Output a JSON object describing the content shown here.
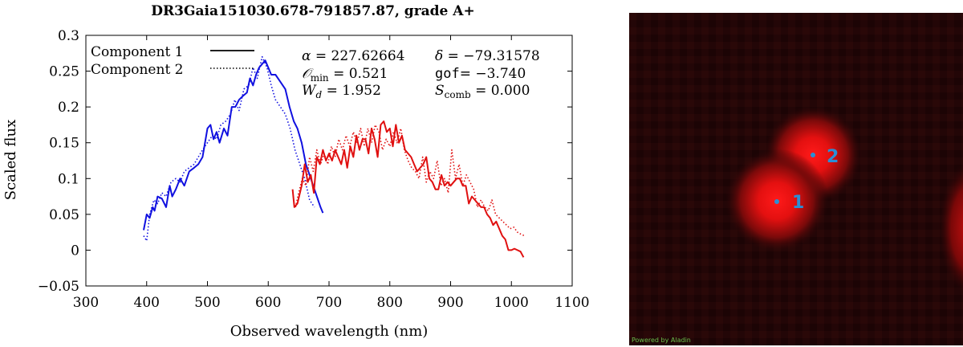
{
  "chart_data": {
    "type": "line",
    "title": "DR3Gaia151030.678-791857.87, grade A+",
    "xlabel": "Observed wavelength (nm)",
    "ylabel": "Scaled flux",
    "xlim": [
      300,
      1100
    ],
    "ylim": [
      -0.05,
      0.3
    ],
    "xticks": [
      "300",
      "400",
      "500",
      "600",
      "700",
      "800",
      "900",
      "1000",
      "1100"
    ],
    "yticks": [
      "−0.05",
      "0",
      "0.05",
      "0.1",
      "0.15",
      "0.2",
      "0.25",
      "0.3"
    ],
    "legend": {
      "position": "top-left",
      "entries": [
        {
          "label": "Component 1",
          "style": "solid"
        },
        {
          "label": "Component 2",
          "style": "dotted"
        }
      ]
    },
    "annotations": {
      "alpha": {
        "symbol": "α",
        "value": "= 227.62664"
      },
      "delta": {
        "symbol": "δ",
        "value": "= −79.31578"
      },
      "omin": {
        "symbol": "𝒪",
        "sub": "min",
        "value": " = 0.521"
      },
      "gof": {
        "symbol": "gof",
        "value": "= −3.740"
      },
      "wd": {
        "symbol": "W",
        "sub": "d",
        "value": " = 1.952"
      },
      "scomb": {
        "symbol": "S",
        "sub": "comb",
        "value": " = 0.000"
      }
    },
    "colors": {
      "blue": "#1010e0",
      "red": "#e01010"
    },
    "series": [
      {
        "name": "Component 1",
        "color": "blue",
        "style": "solid",
        "x": [
          395,
          400,
          405,
          410,
          413,
          418,
          425,
          432,
          438,
          442,
          448,
          455,
          462,
          470,
          478,
          485,
          492,
          500,
          505,
          510,
          515,
          520,
          527,
          533,
          540,
          546,
          552,
          558,
          565,
          570,
          575,
          580,
          585,
          590,
          595,
          600,
          605,
          612,
          620,
          628,
          635,
          642,
          648,
          655,
          662,
          670,
          678,
          686,
          690
        ],
        "y": [
          0.028,
          0.05,
          0.045,
          0.06,
          0.055,
          0.075,
          0.072,
          0.06,
          0.09,
          0.075,
          0.085,
          0.1,
          0.09,
          0.11,
          0.115,
          0.12,
          0.13,
          0.17,
          0.175,
          0.155,
          0.165,
          0.15,
          0.17,
          0.16,
          0.2,
          0.2,
          0.21,
          0.215,
          0.22,
          0.24,
          0.23,
          0.245,
          0.255,
          0.26,
          0.265,
          0.255,
          0.245,
          0.245,
          0.235,
          0.225,
          0.2,
          0.18,
          0.17,
          0.15,
          0.12,
          0.1,
          0.08,
          0.06,
          0.052
        ]
      },
      {
        "name": "Component 2",
        "color": "blue",
        "style": "dotted",
        "x": [
          395,
          400,
          405,
          412,
          418,
          425,
          432,
          440,
          448,
          455,
          462,
          470,
          478,
          485,
          492,
          500,
          508,
          515,
          522,
          530,
          538,
          545,
          552,
          560,
          568,
          575,
          582,
          590,
          598,
          605,
          612,
          620,
          628,
          636,
          644,
          652,
          660,
          668,
          676
        ],
        "y": [
          0.02,
          0.013,
          0.05,
          0.07,
          0.065,
          0.08,
          0.075,
          0.095,
          0.1,
          0.095,
          0.11,
          0.115,
          0.12,
          0.13,
          0.14,
          0.15,
          0.16,
          0.155,
          0.175,
          0.18,
          0.19,
          0.21,
          0.195,
          0.225,
          0.23,
          0.255,
          0.24,
          0.27,
          0.255,
          0.23,
          0.21,
          0.2,
          0.19,
          0.17,
          0.14,
          0.12,
          0.1,
          0.07,
          0.06
        ]
      },
      {
        "name": "Component 1",
        "color": "red",
        "style": "solid",
        "x": [
          640,
          643,
          648,
          655,
          660,
          665,
          670,
          675,
          680,
          685,
          690,
          695,
          700,
          705,
          710,
          715,
          720,
          725,
          730,
          735,
          740,
          745,
          750,
          755,
          760,
          765,
          770,
          775,
          780,
          785,
          790,
          795,
          800,
          805,
          810,
          815,
          820,
          825,
          830,
          835,
          840,
          845,
          850,
          855,
          860,
          865,
          870,
          875,
          880,
          885,
          890,
          895,
          900,
          905,
          910,
          915,
          920,
          925,
          930,
          935,
          940,
          945,
          950,
          955,
          960,
          965,
          970,
          975,
          980,
          985,
          990,
          995,
          1000,
          1005,
          1010,
          1015,
          1020
        ],
        "y": [
          0.085,
          0.06,
          0.065,
          0.09,
          0.12,
          0.095,
          0.105,
          0.08,
          0.13,
          0.12,
          0.14,
          0.125,
          0.135,
          0.125,
          0.14,
          0.13,
          0.12,
          0.14,
          0.115,
          0.145,
          0.13,
          0.16,
          0.14,
          0.155,
          0.155,
          0.135,
          0.17,
          0.155,
          0.13,
          0.175,
          0.18,
          0.165,
          0.17,
          0.145,
          0.175,
          0.15,
          0.16,
          0.14,
          0.135,
          0.13,
          0.12,
          0.11,
          0.115,
          0.12,
          0.13,
          0.1,
          0.095,
          0.085,
          0.085,
          0.105,
          0.09,
          0.095,
          0.09,
          0.095,
          0.1,
          0.1,
          0.09,
          0.09,
          0.065,
          0.075,
          0.07,
          0.065,
          0.06,
          0.06,
          0.05,
          0.045,
          0.035,
          0.04,
          0.03,
          0.02,
          0.015,
          0.0,
          0.0,
          0.002,
          0.0,
          -0.002,
          -0.01
        ]
      },
      {
        "name": "Component 2",
        "color": "red",
        "style": "dotted",
        "x": [
          645,
          650,
          656,
          662,
          668,
          674,
          680,
          686,
          692,
          698,
          704,
          710,
          716,
          722,
          728,
          734,
          740,
          746,
          752,
          758,
          764,
          770,
          776,
          782,
          788,
          794,
          800,
          806,
          812,
          818,
          824,
          830,
          836,
          842,
          848,
          854,
          860,
          866,
          872,
          878,
          884,
          890,
          896,
          902,
          908,
          914,
          920,
          926,
          932,
          938,
          944,
          950,
          956,
          962,
          968,
          974,
          980,
          986,
          992,
          998,
          1004,
          1010,
          1016,
          1022
        ],
        "y": [
          0.06,
          0.08,
          0.1,
          0.09,
          0.13,
          0.11,
          0.14,
          0.12,
          0.135,
          0.12,
          0.145,
          0.13,
          0.155,
          0.14,
          0.16,
          0.145,
          0.165,
          0.15,
          0.17,
          0.145,
          0.17,
          0.15,
          0.175,
          0.165,
          0.14,
          0.155,
          0.145,
          0.165,
          0.15,
          0.17,
          0.14,
          0.125,
          0.115,
          0.11,
          0.1,
          0.13,
          0.095,
          0.11,
          0.1,
          0.125,
          0.09,
          0.1,
          0.08,
          0.14,
          0.1,
          0.12,
          0.09,
          0.105,
          0.095,
          0.085,
          0.06,
          0.07,
          0.06,
          0.055,
          0.07,
          0.05,
          0.045,
          0.04,
          0.035,
          0.03,
          0.032,
          0.025,
          0.022,
          0.02
        ]
      }
    ]
  },
  "sky_image": {
    "sources": [
      {
        "label": "1",
        "color": "#2a8fd6"
      },
      {
        "label": "2",
        "color": "#2a8fd6"
      }
    ],
    "credit": "Powered by Aladin",
    "colors": {
      "background": "#230607",
      "glow": "#ff1010"
    }
  }
}
